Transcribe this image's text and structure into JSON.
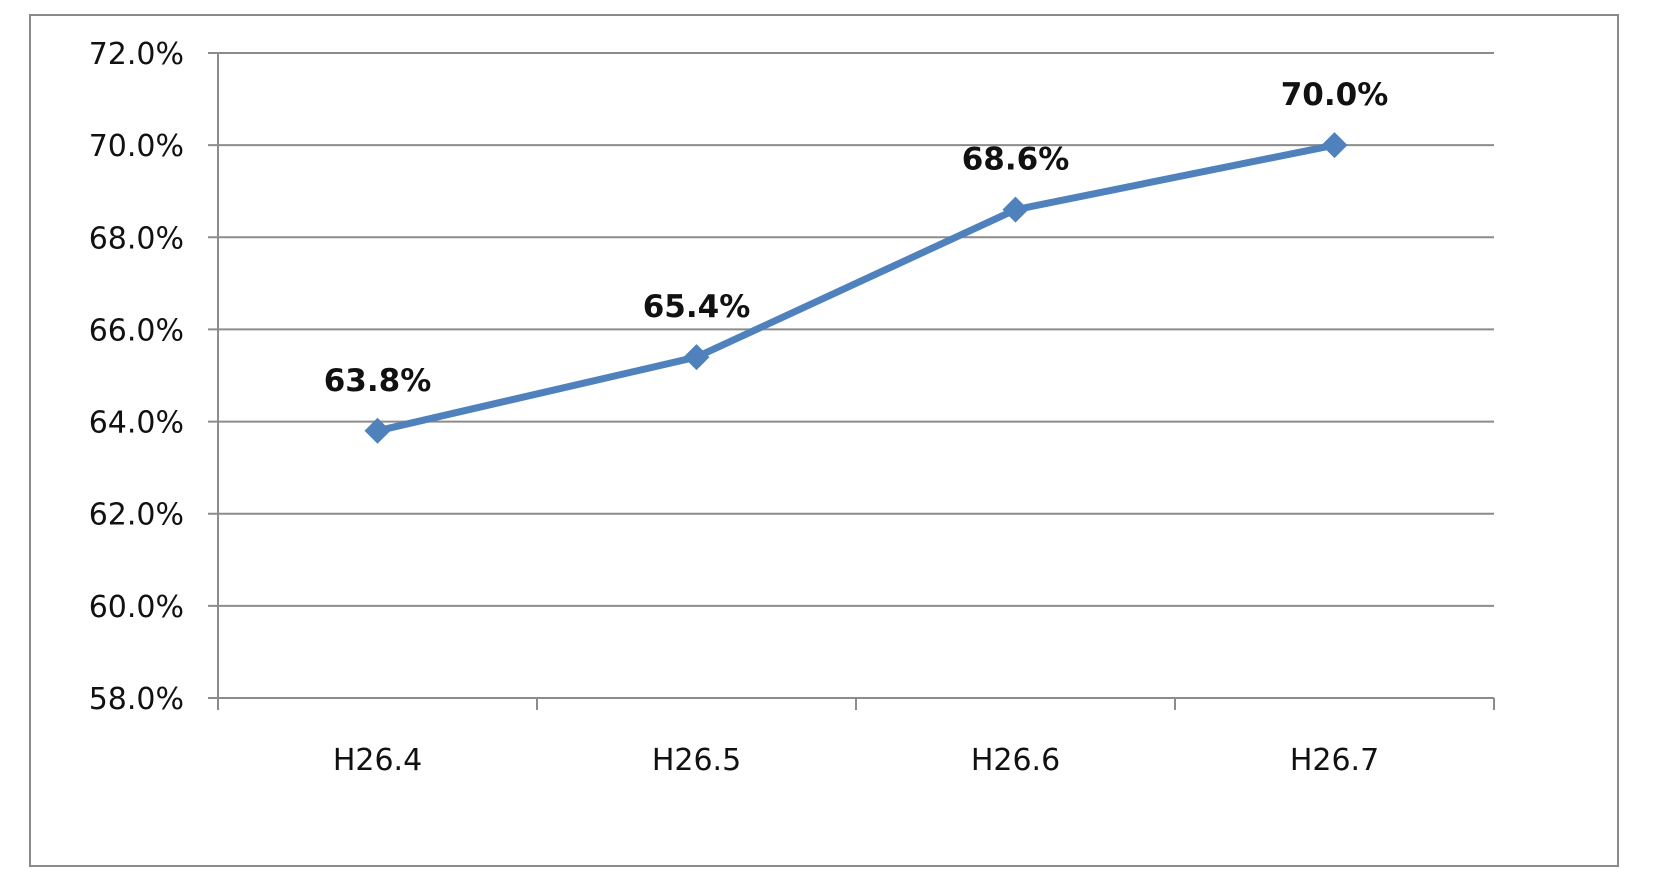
{
  "chart_data": {
    "type": "line",
    "categories": [
      "H26.4",
      "H26.5",
      "H26.6",
      "H26.7"
    ],
    "series": [
      {
        "values": [
          63.8,
          65.4,
          68.6,
          70.0
        ],
        "color": "#4F81BD",
        "marker": "diamond"
      }
    ],
    "data_labels": [
      "63.8%",
      "65.4%",
      "68.6%",
      "70.0%"
    ],
    "y_ticks": [
      58.0,
      60.0,
      62.0,
      64.0,
      66.0,
      68.0,
      70.0,
      72.0
    ],
    "y_tick_labels": [
      "58.0%",
      "60.0%",
      "62.0%",
      "64.0%",
      "66.0%",
      "68.0%",
      "70.0%",
      "72.0%"
    ],
    "ylim": [
      58.0,
      72.0
    ],
    "grid": true,
    "legend": "none",
    "title": "",
    "xlabel": "",
    "ylabel": ""
  }
}
